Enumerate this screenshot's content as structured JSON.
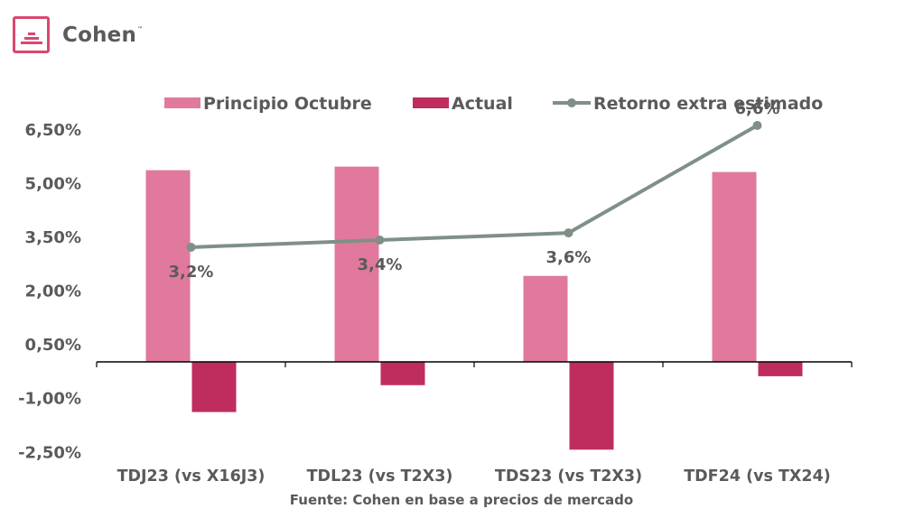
{
  "brand": {
    "name": "Cohen",
    "tm": "™"
  },
  "colors": {
    "principio": "#e0799d",
    "actual": "#bf2d5e",
    "line": "#7f9086",
    "text": "#5a5a5a",
    "brand": "#d9486f"
  },
  "chart_data": {
    "type": "bar",
    "categories": [
      "TDJ23 (vs X16J3)",
      "TDL23 (vs T2X3)",
      "TDS23 (vs T2X3)",
      "TDF24 (vs TX24)"
    ],
    "series": [
      {
        "name": "Principio Octubre",
        "type": "bar",
        "values": [
          5.35,
          5.45,
          2.4,
          5.3
        ]
      },
      {
        "name": "Actual",
        "type": "bar",
        "values": [
          -1.4,
          -0.65,
          -2.45,
          -0.4
        ]
      },
      {
        "name": "Retorno extra estimado",
        "type": "line",
        "values": [
          3.2,
          3.4,
          3.6,
          6.6
        ],
        "labels": [
          "3,2%",
          "3,4%",
          "3,6%",
          "6,6%"
        ]
      }
    ],
    "yticks": [
      "6,50%",
      "5,00%",
      "3,50%",
      "2,00%",
      "0,50%",
      "-1,00%",
      "-2,50%"
    ],
    "ytick_values": [
      6.5,
      5.0,
      3.5,
      2.0,
      0.5,
      -1.0,
      -2.5
    ],
    "ylim": [
      -2.5,
      6.5
    ],
    "grid": false,
    "legend_position": "top",
    "source": "Fuente: Cohen en base a precios de mercado"
  }
}
